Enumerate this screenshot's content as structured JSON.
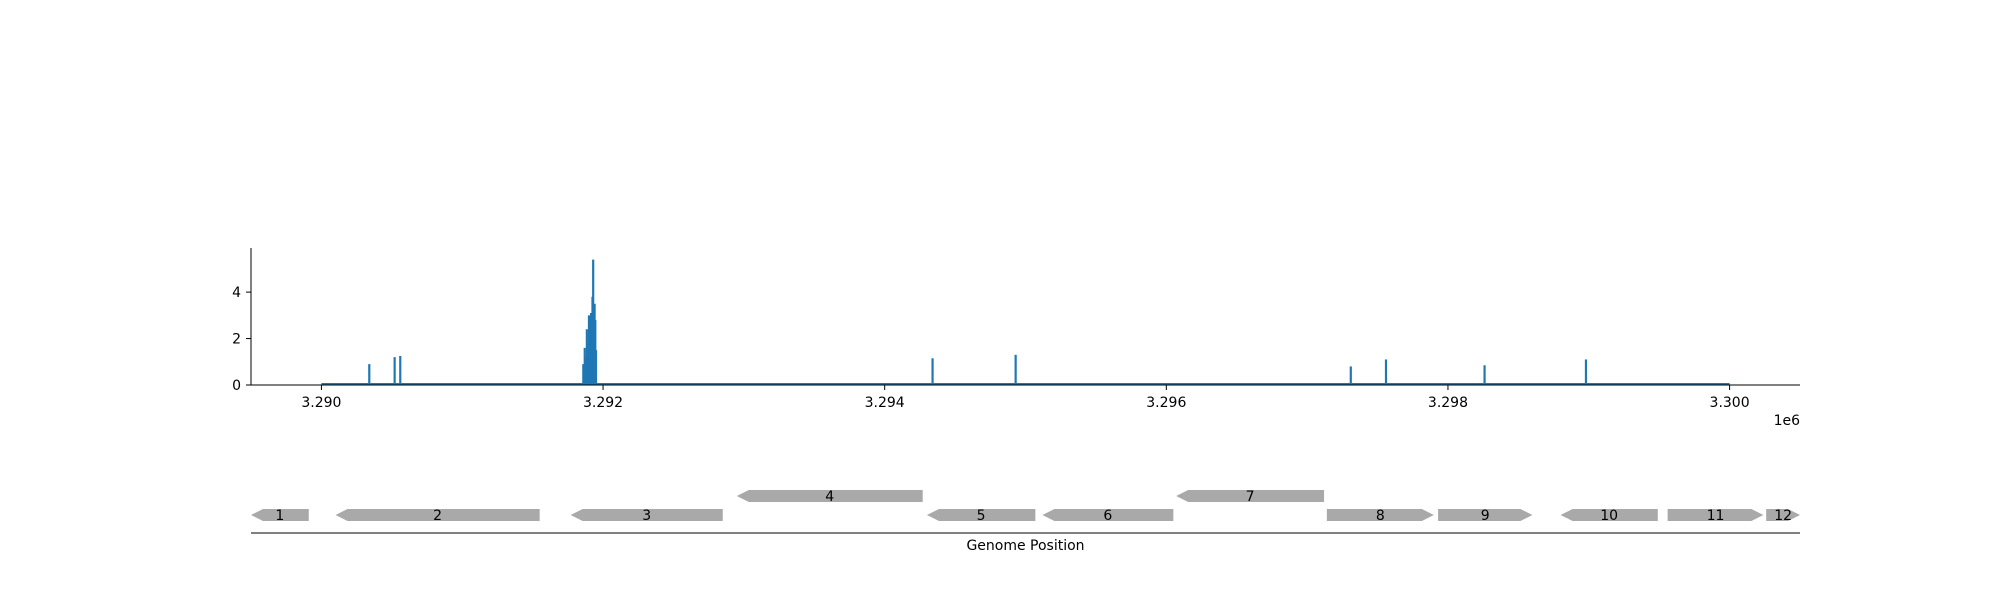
{
  "chart_data": [
    {
      "type": "bar",
      "x_offset_label": "1e6",
      "xlim": [
        3289500,
        3300500
      ],
      "ylim": [
        0,
        5.9
      ],
      "x_ticks": [
        {
          "value": 3290000,
          "label": "3.290"
        },
        {
          "value": 3292000,
          "label": "3.292"
        },
        {
          "value": 3294000,
          "label": "3.294"
        },
        {
          "value": 3296000,
          "label": "3.296"
        },
        {
          "value": 3298000,
          "label": "3.298"
        },
        {
          "value": 3300000,
          "label": "3.300"
        }
      ],
      "y_ticks": [
        {
          "value": 0,
          "label": "0"
        },
        {
          "value": 2,
          "label": "2"
        },
        {
          "value": 4,
          "label": "4"
        }
      ],
      "baseline": [
        3290000,
        3300000
      ],
      "color": "#1f77b4",
      "points": [
        {
          "x": 3290340,
          "y": 0.9
        },
        {
          "x": 3290520,
          "y": 1.2
        },
        {
          "x": 3290560,
          "y": 1.25
        },
        {
          "x": 3291860,
          "y": 0.9
        },
        {
          "x": 3291870,
          "y": 1.6
        },
        {
          "x": 3291880,
          "y": 1.2
        },
        {
          "x": 3291885,
          "y": 2.4
        },
        {
          "x": 3291895,
          "y": 1.8
        },
        {
          "x": 3291900,
          "y": 3.0
        },
        {
          "x": 3291905,
          "y": 2.2
        },
        {
          "x": 3291910,
          "y": 1.4
        },
        {
          "x": 3291915,
          "y": 3.1
        },
        {
          "x": 3291920,
          "y": 2.6
        },
        {
          "x": 3291925,
          "y": 3.8
        },
        {
          "x": 3291930,
          "y": 5.4
        },
        {
          "x": 3291935,
          "y": 2.0
        },
        {
          "x": 3291940,
          "y": 3.5
        },
        {
          "x": 3291945,
          "y": 2.8
        },
        {
          "x": 3291950,
          "y": 1.5
        },
        {
          "x": 3294340,
          "y": 1.15
        },
        {
          "x": 3294930,
          "y": 1.3
        },
        {
          "x": 3297310,
          "y": 0.8
        },
        {
          "x": 3297560,
          "y": 1.1
        },
        {
          "x": 3298260,
          "y": 0.85
        },
        {
          "x": 3298980,
          "y": 1.1
        }
      ]
    },
    {
      "type": "gene-map",
      "xlabel": "Genome Position",
      "genes": [
        {
          "label": "1",
          "start": 3289500,
          "end": 3289910,
          "strand": -1,
          "row": 0
        },
        {
          "label": "2",
          "start": 3290100,
          "end": 3291550,
          "strand": -1,
          "row": 0
        },
        {
          "label": "3",
          "start": 3291770,
          "end": 3292850,
          "strand": -1,
          "row": 0
        },
        {
          "label": "4",
          "start": 3292950,
          "end": 3294270,
          "strand": -1,
          "row": 1
        },
        {
          "label": "5",
          "start": 3294300,
          "end": 3295070,
          "strand": -1,
          "row": 0
        },
        {
          "label": "6",
          "start": 3295120,
          "end": 3296050,
          "strand": -1,
          "row": 0
        },
        {
          "label": "7",
          "start": 3296070,
          "end": 3297120,
          "strand": -1,
          "row": 1
        },
        {
          "label": "8",
          "start": 3297140,
          "end": 3297900,
          "strand": 1,
          "row": 0
        },
        {
          "label": "9",
          "start": 3297930,
          "end": 3298600,
          "strand": 1,
          "row": 0
        },
        {
          "label": "10",
          "start": 3298800,
          "end": 3299490,
          "strand": -1,
          "row": 0
        },
        {
          "label": "11",
          "start": 3299560,
          "end": 3300240,
          "strand": 1,
          "row": 0
        },
        {
          "label": "12",
          "start": 3300260,
          "end": 3300500,
          "strand": 1,
          "row": 0
        }
      ],
      "color": "#a9a9a9"
    }
  ]
}
